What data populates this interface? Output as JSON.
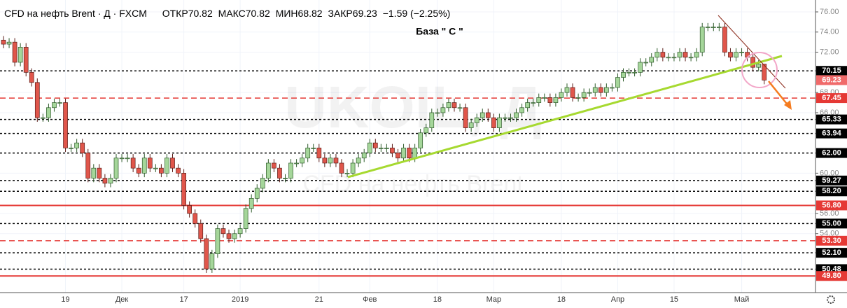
{
  "chart_data": {
    "type": "candlestick",
    "title": "CFD на нефть Brent · Д · FXCM",
    "ohlc_labels": [
      "ОТКР",
      "МАКС",
      "МИН",
      "ЗАКР"
    ],
    "change_text": "−1.59 (−2.25%)",
    "annotation": "База  \" С \"",
    "watermark": [
      "UKOIL, Д",
      "CFD на нефть Brent"
    ],
    "up_color": "#a5d69a",
    "down_color": "#e0564b",
    "grid": true,
    "ylim": [
      48.15,
      77.18
    ],
    "yticks": [
      {
        "value": 76,
        "label": "76.00"
      },
      {
        "value": 74,
        "label": "74.00"
      },
      {
        "value": 72,
        "label": "72.00"
      },
      {
        "value": 68,
        "label": "68.00"
      },
      {
        "value": 66,
        "label": "66.00"
      },
      {
        "value": 60,
        "label": "60.00"
      },
      {
        "value": 56,
        "label": "56.00"
      },
      {
        "value": 54,
        "label": "54.00"
      }
    ],
    "levels": [
      {
        "value": 70.15,
        "label": "70.15",
        "color": "#000000",
        "style": "dotted"
      },
      {
        "value": 67.45,
        "label": "67.45",
        "color": "#e53935",
        "style": "dashed"
      },
      {
        "value": 65.33,
        "label": "65.33",
        "color": "#000000",
        "style": "dotted"
      },
      {
        "value": 63.94,
        "label": "63.94",
        "color": "#000000",
        "style": "dotted"
      },
      {
        "value": 62,
        "label": "62.00",
        "color": "#000000",
        "style": "dotted"
      },
      {
        "value": 59.27,
        "label": "59.27",
        "color": "#000000",
        "style": "dotted"
      },
      {
        "value": 58.2,
        "label": "58.20",
        "color": "#000000",
        "style": "dotted"
      },
      {
        "value": 56.8,
        "label": "56.80",
        "color": "#e53935",
        "style": "solid"
      },
      {
        "value": 55,
        "label": "55.00",
        "color": "#000000",
        "style": "dotted"
      },
      {
        "value": 53.3,
        "label": "53.30",
        "color": "#e53935",
        "style": "dashed"
      },
      {
        "value": 52.1,
        "label": "52.10",
        "color": "#000000",
        "style": "dotted"
      },
      {
        "value": 50.48,
        "label": "50.48",
        "color": "#000000",
        "style": "dotted"
      },
      {
        "value": 49.8,
        "label": "49.80",
        "color": "#e53935",
        "style": "solid"
      }
    ],
    "categories": [
      null,
      null,
      null,
      null,
      null,
      null,
      null,
      null,
      null,
      null,
      null,
      "19",
      null,
      null,
      null,
      null,
      null,
      null,
      null,
      null,
      null,
      "Дек",
      null,
      null,
      null,
      null,
      null,
      null,
      null,
      null,
      null,
      null,
      "17",
      null,
      null,
      null,
      null,
      null,
      null,
      null,
      null,
      null,
      "2019",
      null,
      null,
      null,
      null,
      null,
      null,
      null,
      null,
      null,
      null,
      null,
      null,
      null,
      "21",
      null,
      null,
      null,
      null,
      null,
      null,
      null,
      null,
      "Фев",
      null,
      null,
      null,
      null,
      null,
      null,
      null,
      null,
      null,
      null,
      null,
      "18",
      null,
      null,
      null,
      null,
      null,
      null,
      null,
      null,
      null,
      "Мар",
      null,
      null,
      null,
      null,
      null,
      null,
      null,
      null,
      null,
      null,
      null,
      "18",
      null,
      null,
      null,
      null,
      null,
      null,
      null,
      null,
      null,
      "Апр",
      null,
      null,
      null,
      null,
      null,
      null,
      null,
      null,
      null,
      "15",
      null,
      null,
      null,
      null,
      null,
      null,
      null,
      null,
      null,
      null,
      null,
      "Май",
      null,
      null,
      null,
      null
    ],
    "open": [
      73.2,
      72.8,
      73.0,
      71.0,
      72.5,
      70.0,
      69.0,
      65.5,
      65.5,
      66.5,
      67.0,
      67.0,
      62.5,
      62.5,
      63.0,
      62.0,
      59.5,
      60.5,
      59.5,
      59.0,
      59.5,
      61.5,
      61.5,
      61.5,
      60.5,
      60.0,
      61.5,
      60.5,
      60.5,
      60.0,
      61.5,
      60.5,
      60.0,
      56.8,
      56.0,
      55.0,
      53.5,
      50.5,
      52.0,
      54.5,
      54.0,
      53.5,
      54.0,
      54.5,
      56.5,
      57.5,
      58.5,
      59.5,
      61.0,
      60.5,
      59.5,
      59.5,
      61.0,
      61.0,
      61.5,
      62.5,
      62.5,
      61.5,
      61.0,
      61.5,
      61.0,
      60.0,
      60.0,
      61.0,
      61.5,
      62.0,
      63.0,
      62.5,
      62.5,
      62.5,
      62.0,
      61.5,
      62.5,
      61.5,
      62.5,
      64.0,
      64.5,
      66.0,
      66.0,
      66.5,
      67.0,
      66.5,
      66.5,
      64.5,
      65.0,
      65.5,
      66.0,
      65.5,
      64.5,
      65.5,
      65.5,
      65.5,
      66.0,
      66.5,
      67.0,
      67.0,
      67.5,
      67.5,
      67.0,
      67.5,
      68.0,
      68.5,
      67.5,
      67.5,
      68.0,
      68.0,
      68.5,
      68.0,
      68.5,
      68.5,
      69.5,
      70.0,
      70.0,
      70.0,
      71.0,
      71.0,
      71.5,
      72.0,
      71.5,
      71.5,
      71.5,
      72.0,
      71.5,
      71.5,
      72.0,
      74.5,
      74.5,
      74.5,
      74.5,
      72.0,
      71.5,
      72.0,
      72.0,
      71.5,
      70.5,
      70.82
    ],
    "high": [
      73.6,
      73.4,
      73.4,
      72.9,
      72.9,
      70.4,
      69.4,
      65.9,
      66.9,
      67.4,
      67.4,
      67.4,
      62.9,
      63.4,
      63.4,
      62.4,
      60.9,
      60.9,
      59.9,
      59.9,
      61.9,
      61.9,
      61.9,
      61.9,
      60.9,
      61.9,
      61.9,
      60.9,
      60.9,
      61.9,
      61.9,
      60.9,
      60.4,
      57.2,
      56.4,
      55.4,
      53.9,
      52.4,
      54.9,
      54.9,
      54.4,
      54.4,
      54.9,
      56.9,
      57.9,
      58.9,
      59.9,
      61.4,
      61.4,
      60.9,
      59.9,
      61.4,
      61.4,
      61.9,
      62.9,
      62.9,
      62.9,
      61.9,
      61.9,
      61.9,
      61.4,
      60.4,
      61.4,
      61.9,
      62.4,
      63.4,
      63.4,
      62.9,
      62.9,
      62.9,
      62.4,
      62.9,
      62.9,
      62.9,
      64.4,
      64.9,
      66.4,
      66.4,
      66.9,
      67.4,
      67.4,
      66.9,
      66.9,
      65.4,
      65.9,
      66.4,
      66.4,
      65.9,
      65.9,
      65.9,
      65.9,
      66.4,
      66.9,
      67.4,
      67.4,
      67.9,
      67.9,
      67.9,
      67.9,
      68.4,
      68.9,
      68.9,
      67.9,
      68.4,
      68.4,
      68.9,
      68.9,
      68.9,
      68.9,
      69.9,
      70.4,
      70.4,
      70.4,
      71.4,
      71.4,
      71.9,
      72.4,
      72.4,
      71.9,
      71.9,
      72.4,
      72.4,
      71.9,
      72.4,
      74.9,
      74.9,
      74.9,
      74.9,
      74.9,
      72.4,
      72.4,
      72.4,
      72.4,
      71.9,
      71.22,
      70.82
    ],
    "low": [
      72.4,
      72.4,
      70.6,
      70.6,
      69.6,
      68.6,
      65.1,
      65.1,
      65.1,
      66.1,
      66.6,
      62.1,
      62.1,
      62.1,
      61.6,
      59.1,
      59.1,
      59.1,
      58.6,
      58.6,
      59.1,
      61.1,
      61.1,
      60.1,
      59.6,
      59.6,
      60.1,
      60.1,
      59.6,
      59.6,
      60.1,
      59.6,
      56.4,
      55.6,
      54.6,
      53.1,
      50.1,
      50.1,
      51.6,
      53.6,
      53.1,
      53.1,
      53.6,
      54.1,
      56.1,
      57.1,
      58.1,
      59.1,
      60.1,
      59.1,
      59.1,
      59.1,
      60.6,
      60.6,
      61.1,
      62.1,
      61.1,
      60.6,
      60.6,
      60.6,
      59.6,
      59.6,
      59.6,
      60.6,
      61.1,
      61.6,
      62.1,
      62.1,
      62.1,
      61.6,
      61.1,
      61.1,
      61.1,
      61.1,
      62.1,
      63.6,
      64.1,
      65.6,
      65.6,
      66.1,
      66.1,
      66.1,
      64.1,
      64.1,
      64.6,
      65.1,
      65.1,
      64.1,
      64.1,
      65.1,
      65.1,
      65.1,
      65.6,
      66.1,
      66.6,
      66.6,
      67.1,
      66.6,
      66.6,
      67.1,
      67.6,
      67.1,
      67.1,
      67.1,
      67.6,
      67.6,
      67.6,
      67.6,
      68.1,
      68.1,
      69.1,
      69.6,
      69.6,
      69.6,
      70.6,
      70.6,
      71.1,
      71.1,
      71.1,
      71.1,
      71.1,
      71.1,
      71.1,
      71.1,
      71.6,
      74.1,
      74.1,
      74.1,
      71.6,
      71.1,
      71.1,
      71.6,
      71.1,
      70.1,
      70.1,
      68.82
    ],
    "close": [
      72.8,
      73.0,
      71.0,
      72.5,
      70.0,
      69.0,
      65.5,
      65.5,
      66.5,
      67.0,
      67.0,
      62.5,
      62.5,
      63.0,
      62.0,
      59.5,
      60.5,
      59.5,
      59.0,
      59.5,
      61.5,
      61.5,
      61.5,
      60.5,
      60.0,
      61.5,
      60.5,
      60.5,
      60.0,
      61.5,
      60.5,
      60.0,
      56.8,
      56.0,
      55.0,
      53.5,
      50.5,
      52.0,
      54.5,
      54.0,
      53.5,
      54.0,
      54.5,
      56.5,
      57.5,
      58.5,
      59.5,
      61.0,
      60.5,
      59.5,
      59.5,
      61.0,
      61.0,
      61.5,
      62.5,
      62.5,
      61.5,
      61.0,
      61.5,
      61.0,
      60.0,
      60.0,
      61.0,
      61.5,
      62.0,
      63.0,
      62.5,
      62.5,
      62.5,
      62.0,
      61.5,
      62.5,
      61.5,
      62.5,
      64.0,
      64.5,
      66.0,
      66.0,
      66.5,
      67.0,
      66.5,
      66.5,
      64.5,
      65.0,
      65.5,
      66.0,
      65.5,
      64.5,
      65.5,
      65.5,
      65.5,
      66.0,
      66.5,
      67.0,
      67.0,
      67.5,
      67.5,
      67.0,
      67.5,
      68.0,
      68.5,
      67.5,
      67.5,
      68.0,
      68.0,
      68.5,
      68.0,
      68.5,
      68.5,
      69.5,
      70.0,
      70.0,
      70.0,
      71.0,
      71.0,
      71.5,
      72.0,
      71.5,
      71.5,
      71.5,
      72.0,
      71.5,
      71.5,
      72.0,
      74.5,
      74.5,
      74.5,
      74.5,
      72.0,
      71.5,
      72.0,
      72.0,
      71.5,
      70.5,
      70.82,
      69.23
    ]
  }
}
